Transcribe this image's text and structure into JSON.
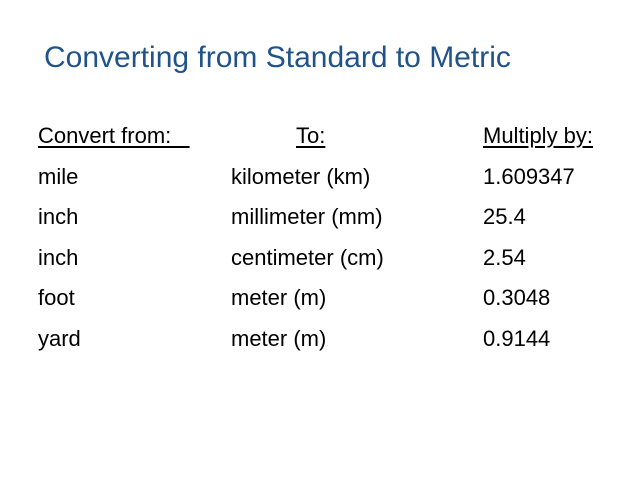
{
  "title": "Converting from Standard to Metric",
  "headers": {
    "from": "Convert from:   ",
    "to": "To:",
    "multiply": "Multiply by:"
  },
  "rows": [
    {
      "from": "mile",
      "to": "kilometer (km)",
      "factor": "1.609347"
    },
    {
      "from": "inch",
      "to": "millimeter (mm)",
      "factor": "25.4"
    },
    {
      "from": "inch",
      "to": "centimeter (cm)",
      "factor": "2.54"
    },
    {
      "from": "foot",
      "to": "meter (m)",
      "factor": "0.3048"
    },
    {
      "from": "yard",
      "to": "meter (m)",
      "factor": "0.9144"
    }
  ],
  "colors": {
    "title": "#1f5389",
    "text": "#000000",
    "background": "#ffffff"
  }
}
